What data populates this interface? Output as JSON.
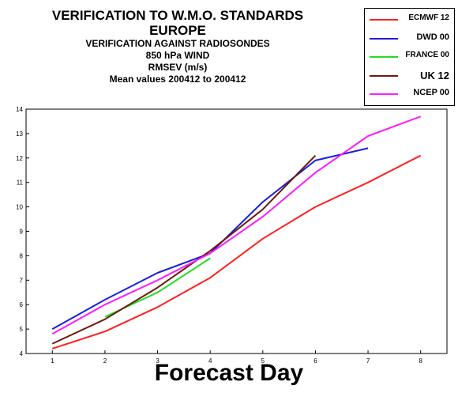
{
  "header": {
    "title_line1": "VERIFICATION TO W.M.O. STANDARDS",
    "title_line2": "EUROPE",
    "subtitle_line1": "VERIFICATION AGAINST RADIOSONDES",
    "subtitle_line2": "850 hPa WIND",
    "subtitle_line3": "RMSEV (m/s)",
    "subtitle_line4": "Mean values 200412 to 200412"
  },
  "chart_data": {
    "type": "line",
    "xlabel": "Forecast Day",
    "ylabel": "",
    "xlim": [
      0.5,
      8.5
    ],
    "ylim": [
      4,
      14
    ],
    "x_ticks": [
      1,
      2,
      3,
      4,
      5,
      6,
      7,
      8
    ],
    "y_ticks": [
      4,
      5,
      6,
      7,
      8,
      9,
      10,
      11,
      12,
      13,
      14
    ],
    "grid": false,
    "legend_position": "top-right",
    "series": [
      {
        "name": "ECMWF 12",
        "color": "#ff2020",
        "x": [
          1,
          2,
          3,
          4,
          5,
          6,
          7,
          8
        ],
        "y": [
          4.2,
          4.9,
          5.9,
          7.1,
          8.7,
          10.0,
          11.0,
          12.1
        ]
      },
      {
        "name": "DWD 00",
        "color": "#1c1cdc",
        "x": [
          1,
          2,
          3,
          4,
          5,
          6,
          7
        ],
        "y": [
          5.0,
          6.2,
          7.3,
          8.1,
          10.2,
          11.9,
          12.4
        ]
      },
      {
        "name": "FRANCE 00",
        "color": "#22dd22",
        "x": [
          2,
          3,
          4
        ],
        "y": [
          5.5,
          6.5,
          7.9
        ]
      },
      {
        "name": "UK 12",
        "color": "#6b1a0e",
        "x": [
          1,
          2,
          3,
          4,
          5,
          6
        ],
        "y": [
          4.4,
          5.4,
          6.7,
          8.2,
          9.9,
          12.1
        ]
      },
      {
        "name": "NCEP 00",
        "color": "#ff1cff",
        "x": [
          1,
          2,
          3,
          4,
          5,
          6,
          7,
          8
        ],
        "y": [
          4.8,
          6.0,
          7.0,
          8.1,
          9.6,
          11.4,
          12.9,
          13.7
        ]
      }
    ]
  }
}
